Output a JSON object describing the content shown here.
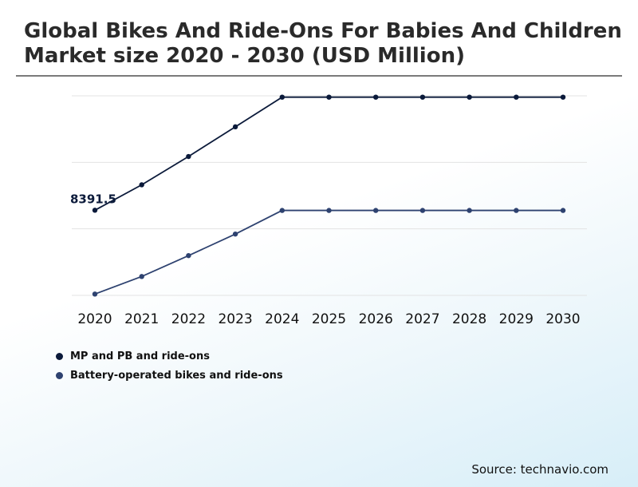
{
  "header": {
    "title": "Global Bikes And Ride-Ons For Babies And Children Market size 2020 - 2030 (USD Million)"
  },
  "chart_data": {
    "type": "line",
    "x": [
      "2020",
      "2021",
      "2022",
      "2023",
      "2024",
      "2025",
      "2026",
      "2027",
      "2028",
      "2029",
      "2030"
    ],
    "series": [
      {
        "name": "MP and PB and ride-ons",
        "color": "#0b1a3a",
        "values": [
          8391.5,
          8580,
          8790,
          9010,
          9230,
          9230,
          9230,
          9230,
          9230,
          9230,
          9230
        ]
      },
      {
        "name": "Battery-operated bikes and ride-ons",
        "color": "#2e4270",
        "values": [
          7770,
          7900,
          8055,
          8215,
          8390,
          8390,
          8390,
          8390,
          8390,
          8390,
          8390
        ]
      }
    ],
    "annotations": [
      {
        "series": 0,
        "index": 0,
        "text": "8391.5"
      }
    ],
    "ylim": [
      7760,
      9240
    ],
    "grid": true,
    "legend_position": "bottom-left"
  },
  "footer": {
    "source": "Source: technavio.com"
  }
}
